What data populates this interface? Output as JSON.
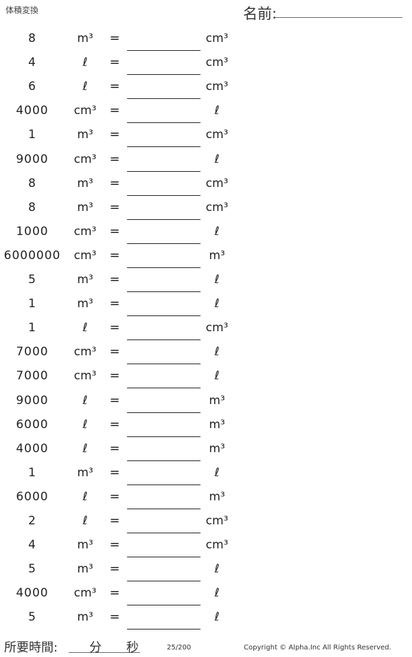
{
  "header": {
    "title": "体積変換",
    "name_label": "名前:"
  },
  "rows": [
    {
      "value": "8",
      "from": "m³",
      "eq": "=",
      "to": "cm³"
    },
    {
      "value": "4",
      "from": "ℓ",
      "eq": "=",
      "to": "cm³"
    },
    {
      "value": "6",
      "from": "ℓ",
      "eq": "=",
      "to": "cm³"
    },
    {
      "value": "4000",
      "from": "cm³",
      "eq": "=",
      "to": "ℓ"
    },
    {
      "value": "1",
      "from": "m³",
      "eq": "=",
      "to": "cm³"
    },
    {
      "value": "9000",
      "from": "cm³",
      "eq": "=",
      "to": "ℓ"
    },
    {
      "value": "8",
      "from": "m³",
      "eq": "=",
      "to": "cm³"
    },
    {
      "value": "8",
      "from": "m³",
      "eq": "=",
      "to": "cm³"
    },
    {
      "value": "1000",
      "from": "cm³",
      "eq": "=",
      "to": "ℓ"
    },
    {
      "value": "6000000",
      "from": "cm³",
      "eq": "=",
      "to": "m³"
    },
    {
      "value": "5",
      "from": "m³",
      "eq": "=",
      "to": "ℓ"
    },
    {
      "value": "1",
      "from": "m³",
      "eq": "=",
      "to": "ℓ"
    },
    {
      "value": "1",
      "from": "ℓ",
      "eq": "=",
      "to": "cm³"
    },
    {
      "value": "7000",
      "from": "cm³",
      "eq": "=",
      "to": "ℓ"
    },
    {
      "value": "7000",
      "from": "cm³",
      "eq": "=",
      "to": "ℓ"
    },
    {
      "value": "9000",
      "from": "ℓ",
      "eq": "=",
      "to": "m³"
    },
    {
      "value": "6000",
      "from": "ℓ",
      "eq": "=",
      "to": "m³"
    },
    {
      "value": "4000",
      "from": "ℓ",
      "eq": "=",
      "to": "m³"
    },
    {
      "value": "1",
      "from": "m³",
      "eq": "=",
      "to": "ℓ"
    },
    {
      "value": "6000",
      "from": "ℓ",
      "eq": "=",
      "to": "m³"
    },
    {
      "value": "2",
      "from": "ℓ",
      "eq": "=",
      "to": "cm³"
    },
    {
      "value": "4",
      "from": "m³",
      "eq": "=",
      "to": "cm³"
    },
    {
      "value": "5",
      "from": "m³",
      "eq": "=",
      "to": "ℓ"
    },
    {
      "value": "4000",
      "from": "cm³",
      "eq": "=",
      "to": "ℓ"
    },
    {
      "value": "5",
      "from": "m³",
      "eq": "=",
      "to": "ℓ"
    }
  ],
  "footer": {
    "time_label": "所要時間:",
    "minutes_label": "分",
    "seconds_label": "秒",
    "page": "25/200",
    "copyright": "Copyright © Alpha.Inc All Rights Reserved."
  }
}
